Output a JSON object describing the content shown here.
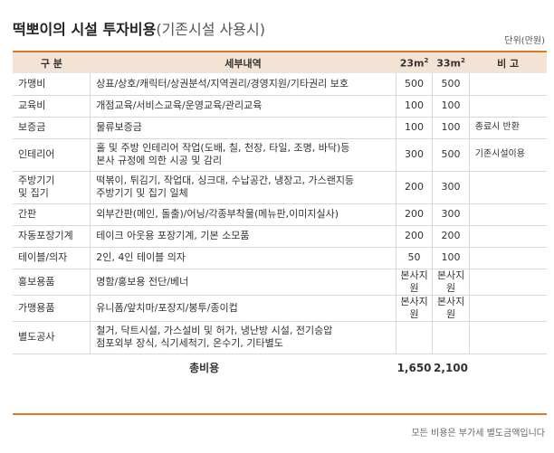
{
  "title": {
    "bold": "떡뽀이의 시설 투자비용",
    "sub": "(기존시설 사용시)"
  },
  "unit": "단위(만원)",
  "headers": {
    "category": "구  분",
    "detail": "세부내역",
    "c23": "23m",
    "c33": "33m",
    "sq": "2",
    "note": "비  고"
  },
  "rows": [
    {
      "category": "가맹비",
      "detail": "상표/상호/캐릭터/상권분석/지역권리/경영지원/기타권리 보호",
      "v23": "500",
      "v33": "500",
      "note": ""
    },
    {
      "category": "교육비",
      "detail": "개점교육/서비스교육/운영교육/관리교육",
      "v23": "100",
      "v33": "100",
      "note": ""
    },
    {
      "category": "보증금",
      "detail": "물류보증금",
      "v23": "100",
      "v33": "100",
      "note": "종료시 반환"
    },
    {
      "category": "인테리어",
      "detail": "홀 및 주방 인테리어 작업(도배, 칠, 천장, 타일, 조명, 바닥)등\n본사 규정에 의한 시공 및 감리",
      "v23": "300",
      "v33": "500",
      "note": "기존시설이용"
    },
    {
      "category": "주방기기\n및 집기",
      "detail": "떡볶이, 튀김기, 작업대, 싱크대, 수납공간, 냉장고, 가스랜지등\n주방기기 및 집기 일체",
      "v23": "200",
      "v33": "300",
      "note": ""
    },
    {
      "category": "간판",
      "detail": "외부간판(메인, 돌출)/어닝/각종부착물(메뉴판,이미지실사)",
      "v23": "200",
      "v33": "300",
      "note": ""
    },
    {
      "category": "자동포장기계",
      "detail": "테이크 아웃용 포장기계, 기본 소모품",
      "v23": "200",
      "v33": "200",
      "note": ""
    },
    {
      "category": "테이블/의자",
      "detail": "2인, 4인 테이블 의자",
      "v23": "50",
      "v33": "100",
      "note": ""
    },
    {
      "category": "홍보용품",
      "detail": "명함/홍보용 전단/베너",
      "v23": "본사지원",
      "v33": "본사지원",
      "note": ""
    },
    {
      "category": "가맹용품",
      "detail": "유니폼/앞치마/포장지/봉투/종이컵",
      "v23": "본사지원",
      "v33": "본사지원",
      "note": ""
    },
    {
      "category": "별도공사",
      "detail": "철거, 닥트시설, 가스설비 및 허가, 냉난방 시설, 전기승압\n점포외부 장식, 식기세척기, 온수기, 기타별도",
      "v23": "",
      "v33": "",
      "note": ""
    }
  ],
  "total": {
    "label": "총비용",
    "v23": "1,650",
    "v33": "2,100"
  },
  "footnote": "모든 비용은 부가세 별도금액입니다"
}
